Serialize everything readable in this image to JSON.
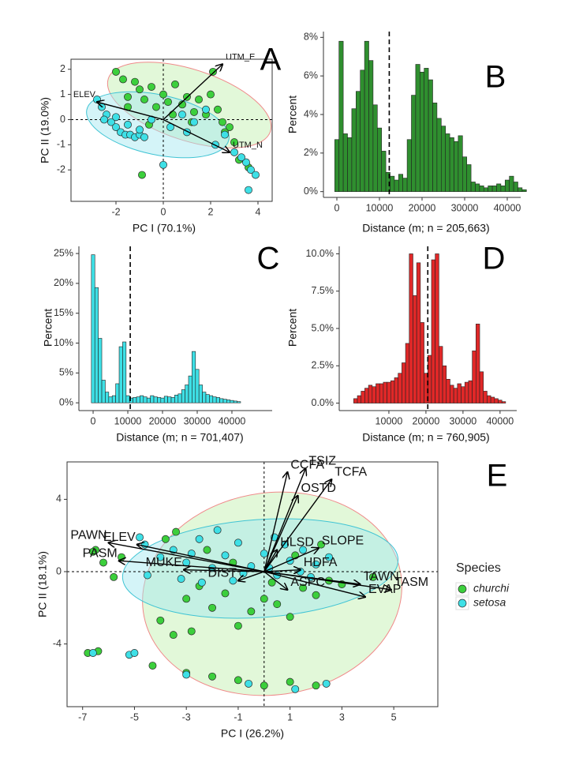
{
  "chart_data": [
    {
      "type": "scatter",
      "label": "A",
      "x_label": "PC I (70.1%)",
      "y_label": "PC II (19.0%)",
      "xlim": [
        -3.9,
        4.6
      ],
      "ylim": [
        -3.25,
        2.4
      ],
      "xticks": [
        -2,
        0,
        2,
        4
      ],
      "yticks": [
        -2,
        -1,
        0,
        1,
        2
      ],
      "zero_lines": true,
      "series": [
        {
          "color": "#3ccf3c",
          "x": [
            -2.0,
            -1.7,
            -1.5,
            -1.2,
            -1.0,
            -0.8,
            -0.5,
            -0.3,
            0.0,
            0.2,
            0.5,
            0.8,
            1.0,
            1.3,
            1.5,
            1.8,
            2.0,
            2.3,
            2.5,
            2.8,
            3.0,
            -1.5,
            -0.6,
            0.4,
            1.2,
            2.1,
            3.2,
            3.6,
            -0.9,
            2.6
          ],
          "y": [
            1.9,
            1.6,
            0.9,
            1.5,
            1.2,
            0.8,
            1.3,
            0.5,
            1.0,
            0.7,
            1.4,
            0.6,
            0.9,
            0.3,
            0.8,
            0.2,
            1.0,
            0.4,
            -0.1,
            -0.3,
            -0.9,
            0.5,
            -0.2,
            0.2,
            -0.1,
            1.9,
            -1.6,
            -1.9,
            -2.2,
            -0.5
          ]
        },
        {
          "color": "#3ee0e6",
          "x": [
            -2.8,
            -2.6,
            -2.4,
            -2.2,
            -2.0,
            -1.8,
            -1.6,
            -1.4,
            -1.2,
            -1.0,
            -0.8,
            -2.5,
            -2.0,
            -1.5,
            -1.0,
            -0.5,
            0.3,
            0.8,
            1.3,
            1.8,
            2.2,
            2.6,
            3.0,
            3.5,
            3.7,
            3.9,
            3.6,
            3.3,
            0.0,
            1.0
          ],
          "y": [
            0.8,
            0.5,
            0.2,
            -0.1,
            -0.3,
            -0.5,
            -0.6,
            -0.6,
            -0.7,
            -0.6,
            -0.7,
            0.0,
            0.1,
            -0.2,
            -0.4,
            0.0,
            -0.3,
            0.2,
            -0.1,
            0.4,
            -1.0,
            -0.6,
            -1.3,
            -1.7,
            -2.0,
            -2.2,
            -2.8,
            -1.5,
            -1.8,
            -0.5
          ]
        }
      ],
      "loadings": [
        {
          "name": "UTM_E",
          "x": 2.5,
          "y": 2.2
        },
        {
          "name": "ELEV",
          "x": -2.8,
          "y": 0.7
        },
        {
          "name": "UTM_N",
          "x": 2.8,
          "y": -1.3
        }
      ]
    },
    {
      "type": "histogram",
      "label": "B",
      "x_label": "Distance (m; n = 205,663)",
      "y_label": "Percent",
      "color": "#2f8f2f",
      "xlim": [
        -3150,
        43150
      ],
      "ylim": [
        -0.3,
        8.3
      ],
      "xticks": [
        0,
        10000,
        20000,
        30000,
        40000
      ],
      "yticks": [
        {
          "value": 0,
          "label": "0%"
        },
        {
          "value": 2,
          "label": "2%"
        },
        {
          "value": 4,
          "label": "4%"
        },
        {
          "value": 6,
          "label": "6%"
        },
        {
          "value": 8,
          "label": "8%"
        }
      ],
      "dashed_line_x": 12300,
      "bins": [
        -500,
        500,
        1500,
        2500,
        3500,
        4500,
        5500,
        6500,
        7500,
        8500,
        9500,
        10500,
        11500,
        12500,
        13500,
        14500,
        15500,
        16500,
        17500,
        18500,
        19500,
        20500,
        21500,
        22500,
        23500,
        24500,
        25500,
        26500,
        27500,
        28500,
        29500,
        30500,
        31500,
        32500,
        33500,
        34500,
        35500,
        36500,
        37500,
        38500,
        39500,
        40500,
        41500,
        42500,
        43500,
        44500
      ],
      "counts": [
        2.7,
        7.8,
        3.0,
        2.8,
        4.3,
        5.2,
        6.3,
        7.8,
        6.8,
        4.5,
        3.3,
        2.1,
        1.0,
        0.8,
        0.6,
        0.9,
        0.7,
        2.7,
        5.0,
        6.6,
        6.2,
        6.4,
        5.8,
        4.6,
        3.8,
        3.4,
        3.0,
        2.8,
        2.6,
        2.9,
        1.8,
        1.4,
        0.5,
        0.4,
        0.3,
        0.2,
        0.3,
        0.3,
        0.4,
        0.3,
        0.6,
        0.8,
        0.5,
        0.2,
        0.1
      ]
    },
    {
      "type": "histogram",
      "label": "C",
      "x_label": "Distance (m; n = 701,407)",
      "y_label": "Percent",
      "color": "#3ee0e6",
      "xlim": [
        -4100,
        51600
      ],
      "ylim": [
        -1.3,
        26.2
      ],
      "xticks": [
        0,
        10000,
        20000,
        30000,
        40000
      ],
      "yticks": [
        {
          "value": 0,
          "label": "0%"
        },
        {
          "value": 5,
          "label": "5%"
        },
        {
          "value": 10,
          "label": "10%"
        },
        {
          "value": 15,
          "label": "15%"
        },
        {
          "value": 20,
          "label": "20%"
        },
        {
          "value": 25,
          "label": "25%"
        }
      ],
      "dashed_line_x": 10700,
      "bins": [
        -500,
        500,
        1500,
        2500,
        3500,
        4500,
        5500,
        6500,
        7500,
        8500,
        9500,
        10500,
        11500,
        12500,
        13500,
        14500,
        15500,
        16500,
        17500,
        18500,
        19500,
        20500,
        21500,
        22500,
        23500,
        24500,
        25500,
        26500,
        27500,
        28500,
        29500,
        30500,
        31500,
        32500,
        33500,
        34500,
        35500,
        36500,
        37500,
        38500,
        39500,
        40500,
        41500,
        42500
      ],
      "counts": [
        24.8,
        19.3,
        10.8,
        3.8,
        1.8,
        1.0,
        1.2,
        3.2,
        9.4,
        10.2,
        1.2,
        0.8,
        0.9,
        1.0,
        1.2,
        1.0,
        0.8,
        1.2,
        1.0,
        0.9,
        0.8,
        1.1,
        1.0,
        0.9,
        1.3,
        1.5,
        2.2,
        3.0,
        4.5,
        8.6,
        5.6,
        3.0,
        1.8,
        1.4,
        1.2,
        1.0,
        0.9,
        0.7,
        0.6,
        0.5,
        0.4,
        0.3,
        0.2
      ]
    },
    {
      "type": "histogram",
      "label": "D",
      "x_label": "Distance (m; n = 760,905)",
      "y_label": "Percent",
      "color": "#e02828",
      "xlim": [
        -3400,
        44500
      ],
      "ylim": [
        -0.5,
        10.5
      ],
      "xticks": [
        10000,
        20000,
        30000,
        40000
      ],
      "yticks": [
        {
          "value": 0,
          "label": "0.0%"
        },
        {
          "value": 2.5,
          "label": "2.5%"
        },
        {
          "value": 5,
          "label": "5.0%"
        },
        {
          "value": 7.5,
          "label": "7.5%"
        },
        {
          "value": 10,
          "label": "10.0%"
        }
      ],
      "dashed_line_x": 20500,
      "bins": [
        500,
        1500,
        2500,
        3500,
        4500,
        5500,
        6500,
        7500,
        8500,
        9500,
        10500,
        11500,
        12500,
        13500,
        14500,
        15500,
        16500,
        17500,
        18500,
        19500,
        20500,
        21500,
        22500,
        23500,
        24500,
        25500,
        26500,
        27500,
        28500,
        29500,
        30500,
        31500,
        32500,
        33500,
        34500,
        35500,
        36500,
        37500,
        38500,
        39500,
        40500,
        41500
      ],
      "counts": [
        0.3,
        0.5,
        0.8,
        1.0,
        1.2,
        1.1,
        1.3,
        1.3,
        1.4,
        1.4,
        1.5,
        1.7,
        2.0,
        2.7,
        4.0,
        10.0,
        7.2,
        9.4,
        5.4,
        2.0,
        3.2,
        9.6,
        10.0,
        3.8,
        2.5,
        1.6,
        1.2,
        1.0,
        1.3,
        1.1,
        1.4,
        1.5,
        3.5,
        5.3,
        2.1,
        0.8,
        0.5,
        0.4,
        0.3,
        0.2,
        0.1
      ]
    },
    {
      "type": "scatter",
      "label": "E",
      "x_label": "PC I (26.2%)",
      "y_label": "PC II (18.1%)",
      "xlim": [
        -7.6,
        6.7
      ],
      "ylim": [
        -7.47,
        6.07
      ],
      "xticks": [
        -7,
        -5,
        -3,
        -1,
        1,
        3,
        5
      ],
      "yticks": [
        -4,
        0,
        4
      ],
      "zero_lines": true,
      "legend_title": "Species",
      "series": [
        {
          "name": "churchi",
          "color": "#3ccf3c",
          "x": [
            -6.5,
            -6.2,
            -5.8,
            -5.5,
            -6.6,
            -6.4,
            -4.0,
            -3.5,
            -3.0,
            -2.5,
            -2.0,
            -1.5,
            -1.0,
            -0.5,
            0.0,
            0.5,
            1.0,
            1.5,
            2.0,
            2.5,
            3.0,
            -3.8,
            -2.2,
            -1.2,
            0.3,
            1.2,
            2.2,
            -4.3,
            -3.0,
            -2.0,
            -1.0,
            0.0,
            1.0,
            2.0,
            -6.8,
            -3.4,
            4.2,
            -2.8
          ],
          "y": [
            1.2,
            0.5,
            -0.3,
            0.8,
            1.1,
            -4.4,
            -2.7,
            -3.5,
            -1.5,
            -0.8,
            -2.0,
            -1.2,
            -3.0,
            -2.2,
            -1.5,
            -1.8,
            -2.5,
            -0.9,
            -1.3,
            -0.5,
            -0.7,
            1.8,
            1.2,
            0.5,
            -0.6,
            0.9,
            1.5,
            -5.2,
            -5.6,
            -5.8,
            -6.0,
            -6.3,
            -6.1,
            -6.3,
            -4.5,
            2.2,
            -0.3,
            -3.3
          ]
        },
        {
          "name": "setosa",
          "color": "#3ee0e6",
          "x": [
            -6.6,
            -5.2,
            -4.6,
            -4.0,
            -3.5,
            -3.0,
            -2.5,
            -2.0,
            -1.5,
            -1.0,
            -0.5,
            0.0,
            0.5,
            1.0,
            1.5,
            2.0,
            2.5,
            -3.2,
            -2.4,
            -1.8,
            -0.8,
            0.2,
            0.8,
            1.8,
            -4.5,
            -2.8,
            -1.2,
            0.4,
            1.4,
            -5.0,
            -3.0,
            -0.6,
            1.2,
            2.4,
            -4.8
          ],
          "y": [
            -4.5,
            -4.6,
            1.5,
            0.8,
            1.2,
            0.5,
            1.8,
            0.2,
            0.9,
            1.6,
            0.3,
            1.0,
            -0.2,
            0.6,
            1.2,
            0.4,
            0.8,
            -0.4,
            -0.6,
            2.3,
            -0.1,
            0.2,
            1.5,
            -0.3,
            -0.2,
            1.0,
            -0.5,
            1.9,
            0.0,
            -4.5,
            -5.7,
            -6.2,
            -6.5,
            -6.2,
            1.9
          ]
        }
      ],
      "loadings": [
        {
          "name": "CCFA",
          "x": 0.9,
          "y": 5.5
        },
        {
          "name": "TSIZ",
          "x": 1.6,
          "y": 5.7
        },
        {
          "name": "TCFA",
          "x": 2.6,
          "y": 5.1
        },
        {
          "name": "OSTD",
          "x": 1.3,
          "y": 4.2
        },
        {
          "name": "PAWN",
          "x": -6.0,
          "y": 1.6
        },
        {
          "name": "ELEV",
          "x": -4.9,
          "y": 1.5
        },
        {
          "name": "PASM",
          "x": -5.6,
          "y": 0.6
        },
        {
          "name": "MUKE",
          "x": -3.1,
          "y": 0.1
        },
        {
          "name": "HLSD",
          "x": 0.5,
          "y": 1.2
        },
        {
          "name": "SLOPE",
          "x": 2.1,
          "y": 1.3
        },
        {
          "name": "HDFA",
          "x": 1.4,
          "y": 0.1
        },
        {
          "name": "TAWN",
          "x": 3.7,
          "y": -0.7
        },
        {
          "name": "TASM",
          "x": 4.9,
          "y": -1.0
        },
        {
          "name": "EVAP",
          "x": 3.9,
          "y": -1.4
        },
        {
          "name": "DIST",
          "x": -1.0,
          "y": -0.5
        },
        {
          "name": "ASPC",
          "x": 0.9,
          "y": -1.0
        }
      ]
    }
  ]
}
